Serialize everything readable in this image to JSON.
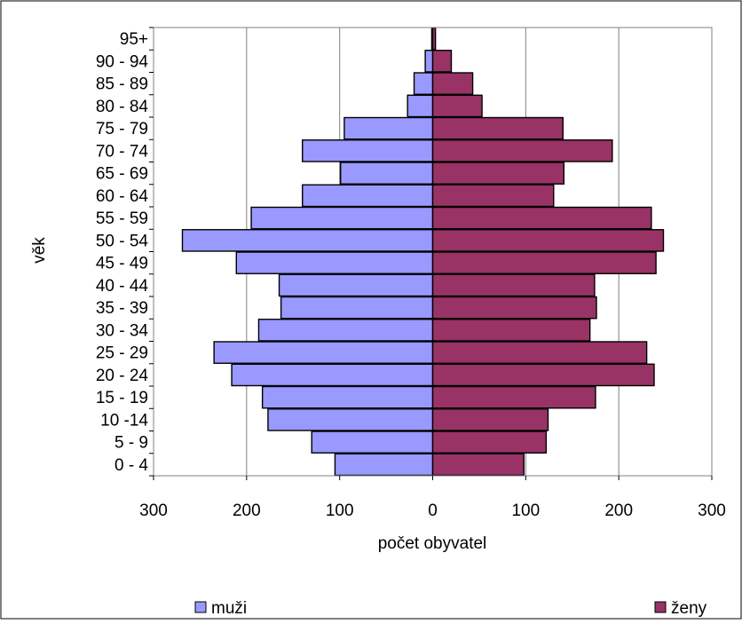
{
  "chart_data": {
    "type": "bar",
    "orientation": "horizontal",
    "layout": "population-pyramid",
    "categories": [
      "0 - 4",
      "5 - 9",
      "10 -14",
      "15 - 19",
      "20 - 24",
      "25 - 29",
      "30 - 34",
      "35 - 39",
      "40 - 44",
      "45 - 49",
      "50 - 54",
      "55 - 59",
      "60 - 64",
      "65 - 69",
      "70 - 74",
      "75 - 79",
      "80 - 84",
      "85 - 89",
      "90 - 94",
      "95+"
    ],
    "series": [
      {
        "name": "muži",
        "color": "#9999ff",
        "side": "left",
        "values": [
          105,
          130,
          177,
          183,
          216,
          235,
          187,
          163,
          165,
          211,
          269,
          195,
          140,
          99,
          140,
          95,
          27,
          20,
          8,
          1
        ]
      },
      {
        "name": "ženy",
        "color": "#993366",
        "side": "right",
        "values": [
          98,
          122,
          124,
          175,
          238,
          230,
          169,
          176,
          174,
          240,
          248,
          235,
          130,
          141,
          193,
          140,
          53,
          43,
          20,
          3
        ]
      }
    ],
    "xlabel": "počet obyvatel",
    "ylabel": "věk",
    "xlim": [
      -300,
      300
    ],
    "x_ticks": [
      -300,
      -200,
      -100,
      0,
      100,
      200,
      300
    ],
    "x_tick_labels": [
      "300",
      "200",
      "100",
      "0",
      "100",
      "200",
      "300"
    ],
    "grid": "vertical",
    "legend": "bottom"
  }
}
